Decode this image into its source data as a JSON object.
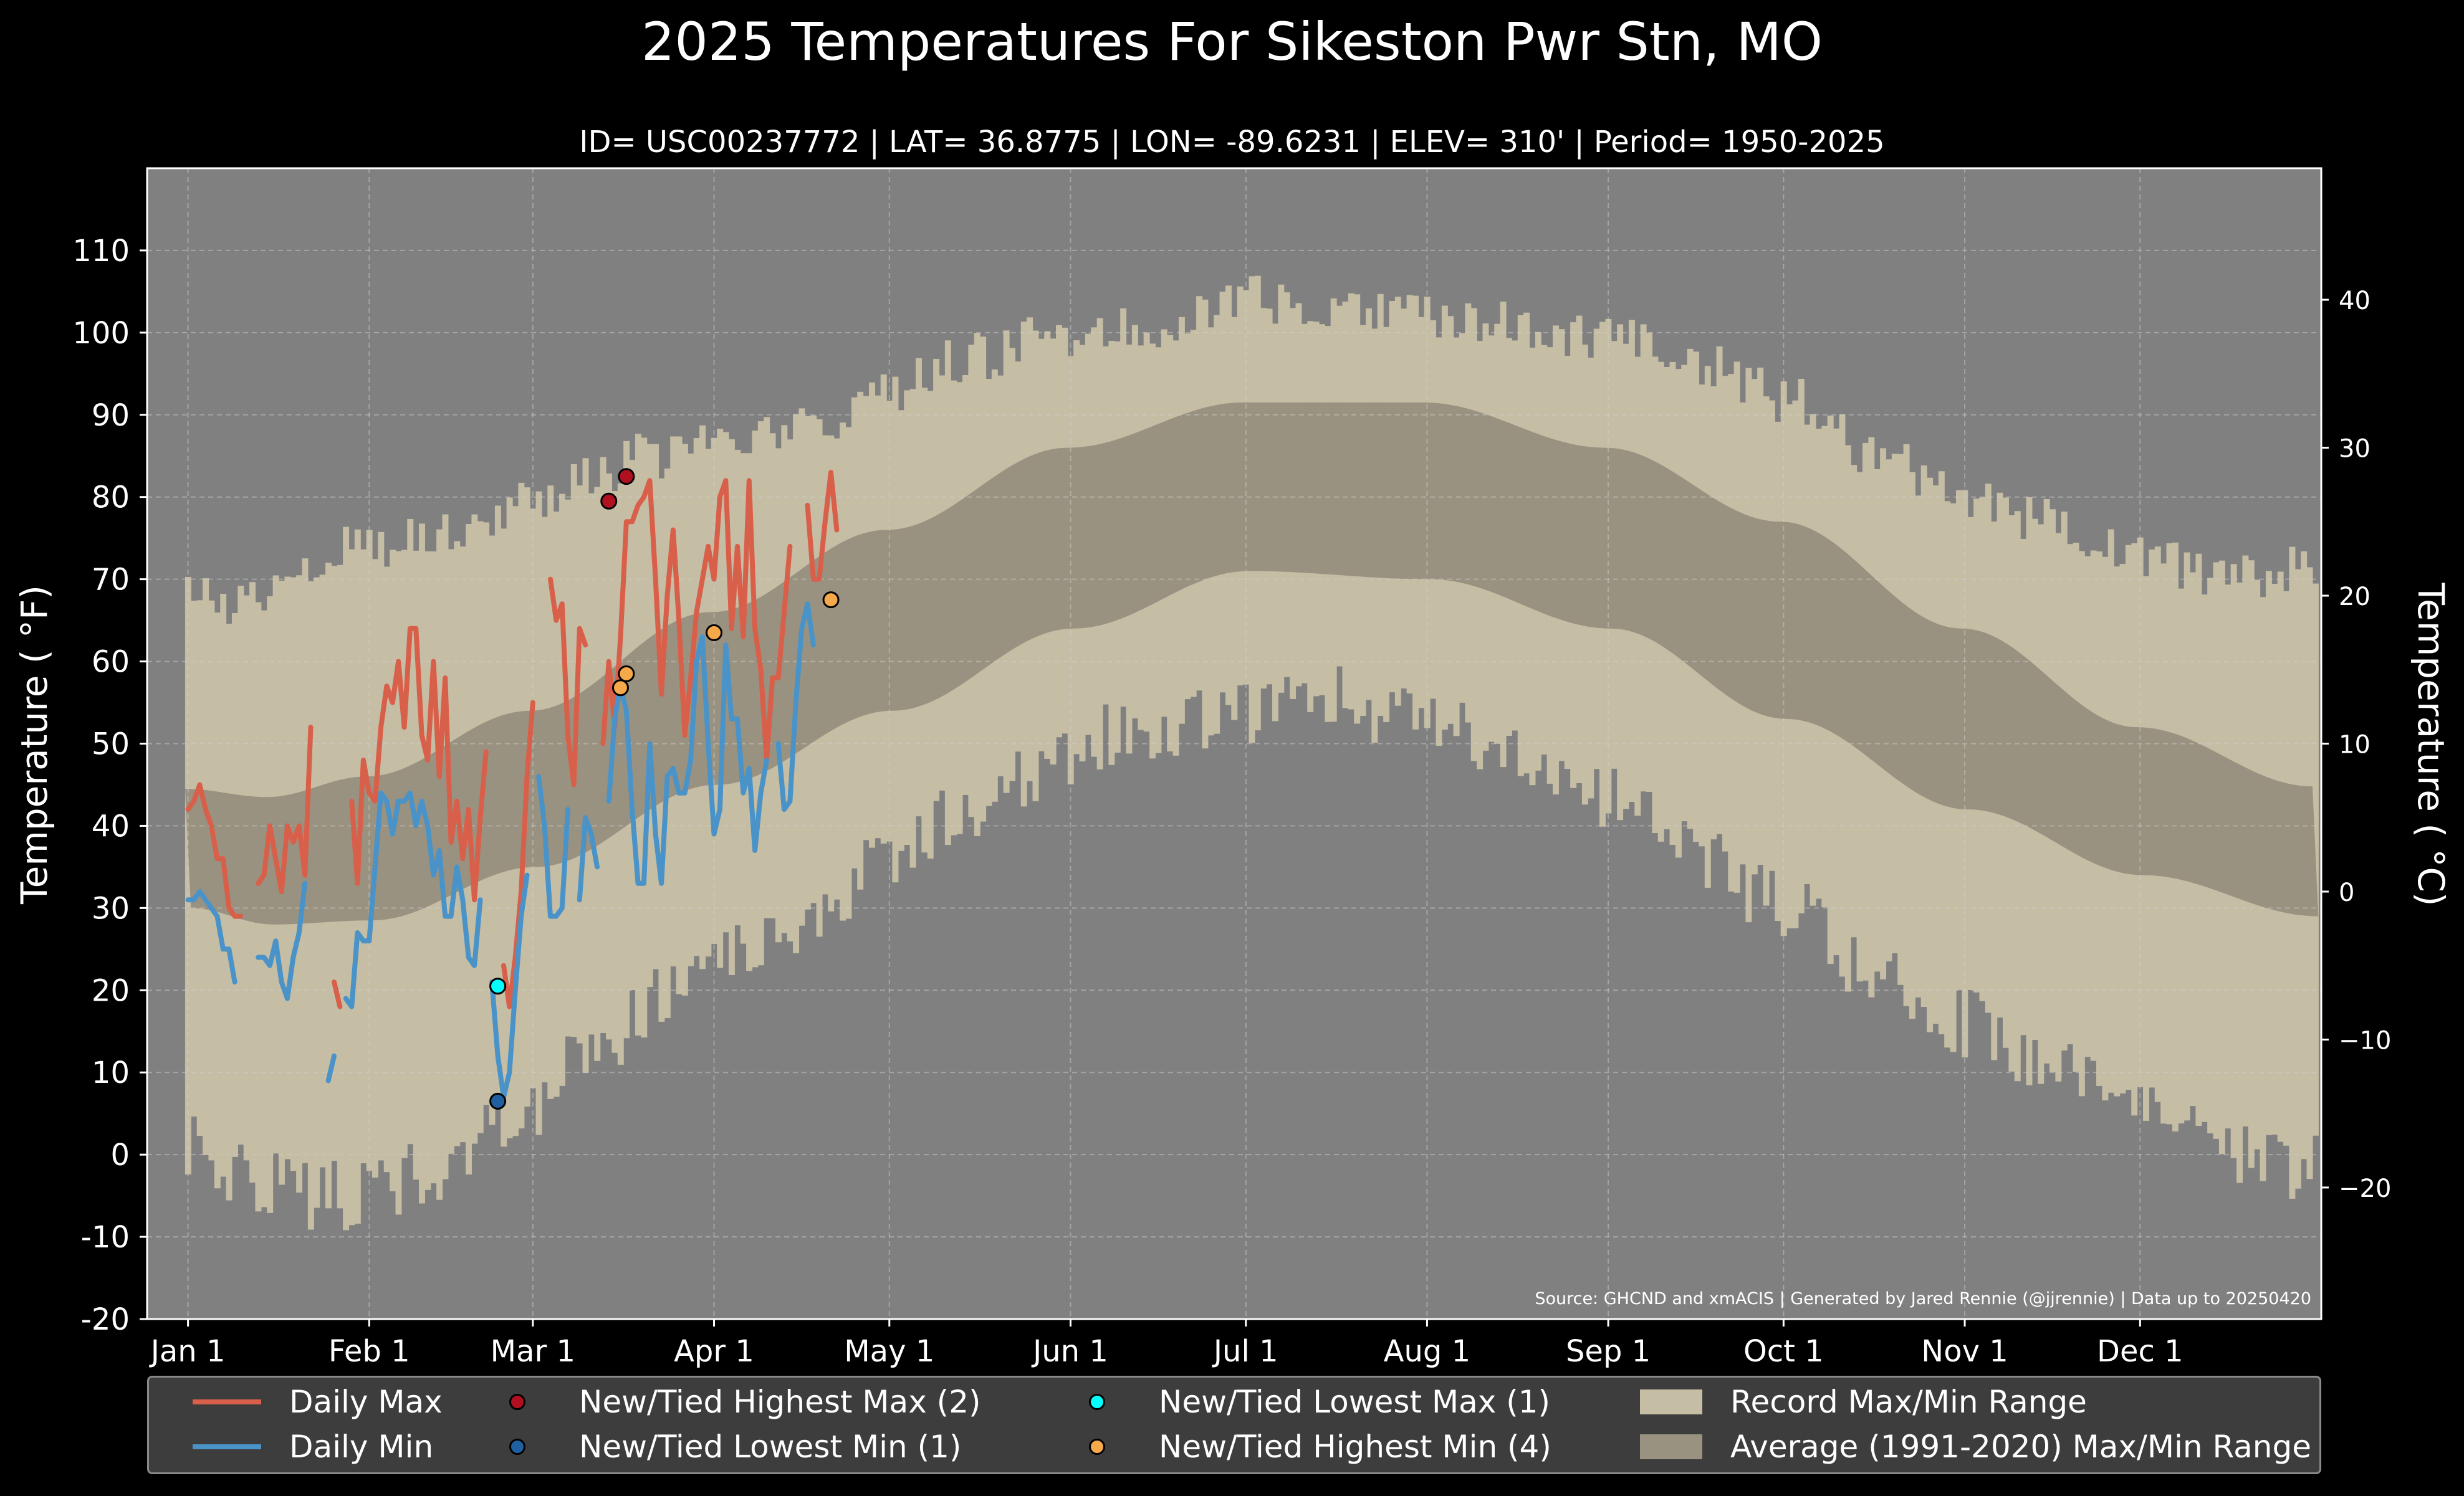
{
  "title": "2025 Temperatures For Sikeston Pwr Stn, MO",
  "subtitle": "ID= USC00237772 | LAT= 36.8775 | LON= -89.6231 | ELEV= 310' | Period= 1950-2025",
  "source": "Source: GHCND and xmACIS | Generated by Jared Rennie (@jjrennie) | Data up to 20250420",
  "colors": {
    "background": "#808080",
    "record_range": "#c5bda4",
    "normal_range": "#9a9280",
    "daily_max": "#d8604a",
    "daily_min": "#4a93c8",
    "highest_max": "#b01020",
    "lowest_min": "#2060a0",
    "lowest_max": "#00ffff",
    "highest_min": "#f5a94a"
  },
  "chart_data": {
    "type": "line",
    "xlabel": "",
    "ylabel": "Temperature ($^\\circ$F)",
    "ylabel_right": "Temperature ($^\\circ$C)",
    "ylim": [
      -20,
      120
    ],
    "yticks": [
      -20,
      -10,
      0,
      10,
      20,
      30,
      40,
      50,
      60,
      70,
      80,
      90,
      100,
      110
    ],
    "yticks_right": [
      -20,
      -10,
      0,
      10,
      20,
      30,
      40
    ],
    "xlim_day": [
      -6,
      366
    ],
    "x_tick_days": [
      1,
      32,
      60,
      91,
      121,
      152,
      182,
      213,
      244,
      274,
      305,
      335
    ],
    "x_tick_labels": [
      "Jan 1",
      "Feb 1",
      "Mar 1",
      "Apr 1",
      "May 1",
      "Jun 1",
      "Jul 1",
      "Aug 1",
      "Sep 1",
      "Oct 1",
      "Nov 1",
      "Dec 1"
    ],
    "grid": true,
    "record_max_knots": [
      [
        1,
        68
      ],
      [
        10,
        67
      ],
      [
        20,
        72
      ],
      [
        30,
        74
      ],
      [
        40,
        75
      ],
      [
        50,
        77
      ],
      [
        60,
        80
      ],
      [
        70,
        82
      ],
      [
        80,
        85
      ],
      [
        91,
        86
      ],
      [
        100,
        87
      ],
      [
        110,
        89
      ],
      [
        121,
        93
      ],
      [
        135,
        97
      ],
      [
        152,
        100
      ],
      [
        165,
        101
      ],
      [
        182,
        104
      ],
      [
        195,
        103
      ],
      [
        213,
        102
      ],
      [
        230,
        101
      ],
      [
        244,
        99
      ],
      [
        260,
        96
      ],
      [
        274,
        92
      ],
      [
        290,
        85
      ],
      [
        305,
        80
      ],
      [
        320,
        77
      ],
      [
        335,
        73
      ],
      [
        350,
        70
      ],
      [
        365,
        72
      ]
    ],
    "record_min_knots": [
      [
        1,
        1
      ],
      [
        10,
        -2
      ],
      [
        20,
        -5
      ],
      [
        30,
        -5
      ],
      [
        40,
        -3
      ],
      [
        50,
        2
      ],
      [
        60,
        6
      ],
      [
        70,
        12
      ],
      [
        80,
        18
      ],
      [
        91,
        23
      ],
      [
        100,
        27
      ],
      [
        110,
        31
      ],
      [
        121,
        36
      ],
      [
        135,
        42
      ],
      [
        152,
        49
      ],
      [
        165,
        52
      ],
      [
        182,
        54
      ],
      [
        195,
        56
      ],
      [
        213,
        53
      ],
      [
        230,
        48
      ],
      [
        244,
        44
      ],
      [
        260,
        37
      ],
      [
        274,
        30
      ],
      [
        290,
        22
      ],
      [
        305,
        16
      ],
      [
        320,
        12
      ],
      [
        335,
        6
      ],
      [
        350,
        0
      ],
      [
        365,
        -2
      ]
    ],
    "normal_max_knots": [
      [
        1,
        44.5
      ],
      [
        15,
        43.5
      ],
      [
        32,
        46
      ],
      [
        60,
        54
      ],
      [
        91,
        66
      ],
      [
        121,
        76
      ],
      [
        152,
        86
      ],
      [
        182,
        91.5
      ],
      [
        213,
        91.5
      ],
      [
        244,
        86
      ],
      [
        274,
        77
      ],
      [
        305,
        64
      ],
      [
        335,
        52
      ],
      [
        365,
        44.8
      ]
    ],
    "normal_min_knots": [
      [
        1,
        30
      ],
      [
        15,
        28
      ],
      [
        32,
        28.5
      ],
      [
        60,
        35
      ],
      [
        91,
        45
      ],
      [
        121,
        54
      ],
      [
        152,
        64
      ],
      [
        182,
        71
      ],
      [
        213,
        70
      ],
      [
        244,
        64
      ],
      [
        274,
        53
      ],
      [
        305,
        42
      ],
      [
        335,
        34
      ],
      [
        365,
        29
      ]
    ],
    "series": [
      {
        "name": "Daily Max",
        "points": [
          [
            1,
            42
          ],
          [
            2,
            43
          ],
          [
            3,
            45
          ],
          [
            4,
            42
          ],
          [
            5,
            40
          ],
          [
            6,
            36
          ],
          [
            7,
            36
          ],
          [
            8,
            30
          ],
          [
            9,
            29
          ],
          [
            10,
            29
          ],
          [
            11,
            null
          ],
          [
            12,
            null
          ],
          [
            13,
            33
          ],
          [
            14,
            34
          ],
          [
            15,
            40
          ],
          [
            16,
            36
          ],
          [
            17,
            32
          ],
          [
            18,
            40
          ],
          [
            19,
            38
          ],
          [
            20,
            40
          ],
          [
            21,
            34
          ],
          [
            22,
            52
          ],
          [
            23,
            null
          ],
          [
            24,
            null
          ],
          [
            25,
            null
          ],
          [
            26,
            21
          ],
          [
            27,
            18
          ],
          [
            28,
            null
          ],
          [
            29,
            43
          ],
          [
            30,
            33
          ],
          [
            31,
            48
          ],
          [
            32,
            44
          ],
          [
            33,
            43
          ],
          [
            34,
            52
          ],
          [
            35,
            57
          ],
          [
            36,
            55
          ],
          [
            37,
            60
          ],
          [
            38,
            52
          ],
          [
            39,
            64
          ],
          [
            40,
            64
          ],
          [
            41,
            51
          ],
          [
            42,
            48
          ],
          [
            43,
            60
          ],
          [
            44,
            46
          ],
          [
            45,
            58
          ],
          [
            46,
            38
          ],
          [
            47,
            43
          ],
          [
            48,
            36
          ],
          [
            49,
            42
          ],
          [
            50,
            31
          ],
          [
            51,
            41
          ],
          [
            52,
            49
          ],
          [
            53,
            null
          ],
          [
            54,
            null
          ],
          [
            55,
            23
          ],
          [
            56,
            18
          ],
          [
            57,
            24
          ],
          [
            58,
            32
          ],
          [
            59,
            46
          ],
          [
            60,
            55
          ],
          [
            61,
            null
          ],
          [
            62,
            null
          ],
          [
            63,
            70
          ],
          [
            64,
            65
          ],
          [
            65,
            67
          ],
          [
            66,
            51
          ],
          [
            67,
            45
          ],
          [
            68,
            64
          ],
          [
            69,
            62
          ],
          [
            70,
            null
          ],
          [
            71,
            null
          ],
          [
            72,
            50
          ],
          [
            73,
            60
          ],
          [
            74,
            52
          ],
          [
            75,
            63
          ],
          [
            76,
            77
          ],
          [
            77,
            77
          ],
          [
            78,
            79
          ],
          [
            79,
            80
          ],
          [
            80,
            82
          ],
          [
            81,
            70
          ],
          [
            82,
            56
          ],
          [
            83,
            68
          ],
          [
            84,
            76
          ],
          [
            85,
            65
          ],
          [
            86,
            51
          ],
          [
            87,
            58
          ],
          [
            88,
            66
          ],
          [
            89,
            70
          ],
          [
            90,
            74
          ],
          [
            91,
            70
          ],
          [
            92,
            80
          ],
          [
            93,
            82
          ],
          [
            94,
            64
          ],
          [
            95,
            74
          ],
          [
            96,
            63
          ],
          [
            97,
            82
          ],
          [
            98,
            64
          ],
          [
            99,
            59
          ],
          [
            100,
            48
          ],
          [
            101,
            58
          ],
          [
            102,
            58
          ],
          [
            103,
            66
          ],
          [
            104,
            74
          ],
          [
            105,
            null
          ],
          [
            106,
            null
          ],
          [
            107,
            79
          ],
          [
            108,
            70
          ],
          [
            109,
            70
          ],
          [
            110,
            77
          ],
          [
            111,
            83
          ],
          [
            112,
            76
          ]
        ]
      },
      {
        "name": "Daily Min",
        "points": [
          [
            1,
            31
          ],
          [
            2,
            31
          ],
          [
            3,
            32
          ],
          [
            4,
            31
          ],
          [
            5,
            30
          ],
          [
            6,
            29
          ],
          [
            7,
            25
          ],
          [
            8,
            25
          ],
          [
            9,
            21
          ],
          [
            10,
            null
          ],
          [
            11,
            null
          ],
          [
            12,
            null
          ],
          [
            13,
            24
          ],
          [
            14,
            24
          ],
          [
            15,
            23
          ],
          [
            16,
            26
          ],
          [
            17,
            21
          ],
          [
            18,
            19
          ],
          [
            19,
            24
          ],
          [
            20,
            27
          ],
          [
            21,
            33
          ],
          [
            22,
            null
          ],
          [
            23,
            null
          ],
          [
            24,
            null
          ],
          [
            25,
            9
          ],
          [
            26,
            12
          ],
          [
            27,
            null
          ],
          [
            28,
            19
          ],
          [
            29,
            18
          ],
          [
            30,
            27
          ],
          [
            31,
            26
          ],
          [
            32,
            26
          ],
          [
            33,
            35
          ],
          [
            34,
            44
          ],
          [
            35,
            43
          ],
          [
            36,
            39
          ],
          [
            37,
            43
          ],
          [
            38,
            43
          ],
          [
            39,
            44
          ],
          [
            40,
            40
          ],
          [
            41,
            43
          ],
          [
            42,
            40
          ],
          [
            43,
            34
          ],
          [
            44,
            37
          ],
          [
            45,
            29
          ],
          [
            46,
            29
          ],
          [
            47,
            35
          ],
          [
            48,
            31
          ],
          [
            49,
            24
          ],
          [
            50,
            23
          ],
          [
            51,
            31
          ],
          [
            52,
            null
          ],
          [
            53,
            21
          ],
          [
            54,
            12
          ],
          [
            55,
            7
          ],
          [
            56,
            10
          ],
          [
            57,
            20
          ],
          [
            58,
            29
          ],
          [
            59,
            34
          ],
          [
            60,
            null
          ],
          [
            61,
            46
          ],
          [
            62,
            40
          ],
          [
            63,
            29
          ],
          [
            64,
            29
          ],
          [
            65,
            30
          ],
          [
            66,
            42
          ],
          [
            67,
            null
          ],
          [
            68,
            31
          ],
          [
            69,
            41
          ],
          [
            70,
            39
          ],
          [
            71,
            35
          ],
          [
            72,
            null
          ],
          [
            73,
            43
          ],
          [
            74,
            53
          ],
          [
            75,
            57
          ],
          [
            76,
            54
          ],
          [
            77,
            42
          ],
          [
            78,
            33
          ],
          [
            79,
            33
          ],
          [
            80,
            50
          ],
          [
            81,
            39
          ],
          [
            82,
            33
          ],
          [
            83,
            46
          ],
          [
            84,
            47
          ],
          [
            85,
            44
          ],
          [
            86,
            44
          ],
          [
            87,
            48
          ],
          [
            88,
            60
          ],
          [
            89,
            63
          ],
          [
            90,
            50
          ],
          [
            91,
            39
          ],
          [
            92,
            42
          ],
          [
            93,
            62
          ],
          [
            94,
            53
          ],
          [
            95,
            53
          ],
          [
            96,
            44
          ],
          [
            97,
            47
          ],
          [
            98,
            37
          ],
          [
            99,
            44
          ],
          [
            100,
            48
          ],
          [
            101,
            null
          ],
          [
            102,
            50
          ],
          [
            103,
            42
          ],
          [
            104,
            43
          ],
          [
            105,
            55
          ],
          [
            106,
            64
          ],
          [
            107,
            67
          ],
          [
            108,
            62
          ]
        ]
      }
    ],
    "records": [
      {
        "name": "New/Tied Highest Max (2)",
        "points": [
          [
            73,
            79.5
          ],
          [
            76,
            82.5
          ]
        ]
      },
      {
        "name": "New/Tied Lowest Min (1)",
        "points": [
          [
            54,
            6.5
          ]
        ]
      },
      {
        "name": "New/Tied Lowest Max (1)",
        "points": [
          [
            54,
            20.5
          ]
        ]
      },
      {
        "name": "New/Tied Highest Min (4)",
        "points": [
          [
            75,
            56.8
          ],
          [
            76,
            58.5
          ],
          [
            91,
            63.5
          ],
          [
            111,
            67.5
          ]
        ]
      }
    ],
    "legend": [
      "Daily Max",
      "Daily Min",
      "New/Tied Highest Max (2)",
      "New/Tied Lowest Min (1)",
      "New/Tied Lowest Max (1)",
      "New/Tied Highest Min (4)",
      "Record Max/Min Range",
      "Average (1991-2020) Max/Min Range"
    ]
  }
}
